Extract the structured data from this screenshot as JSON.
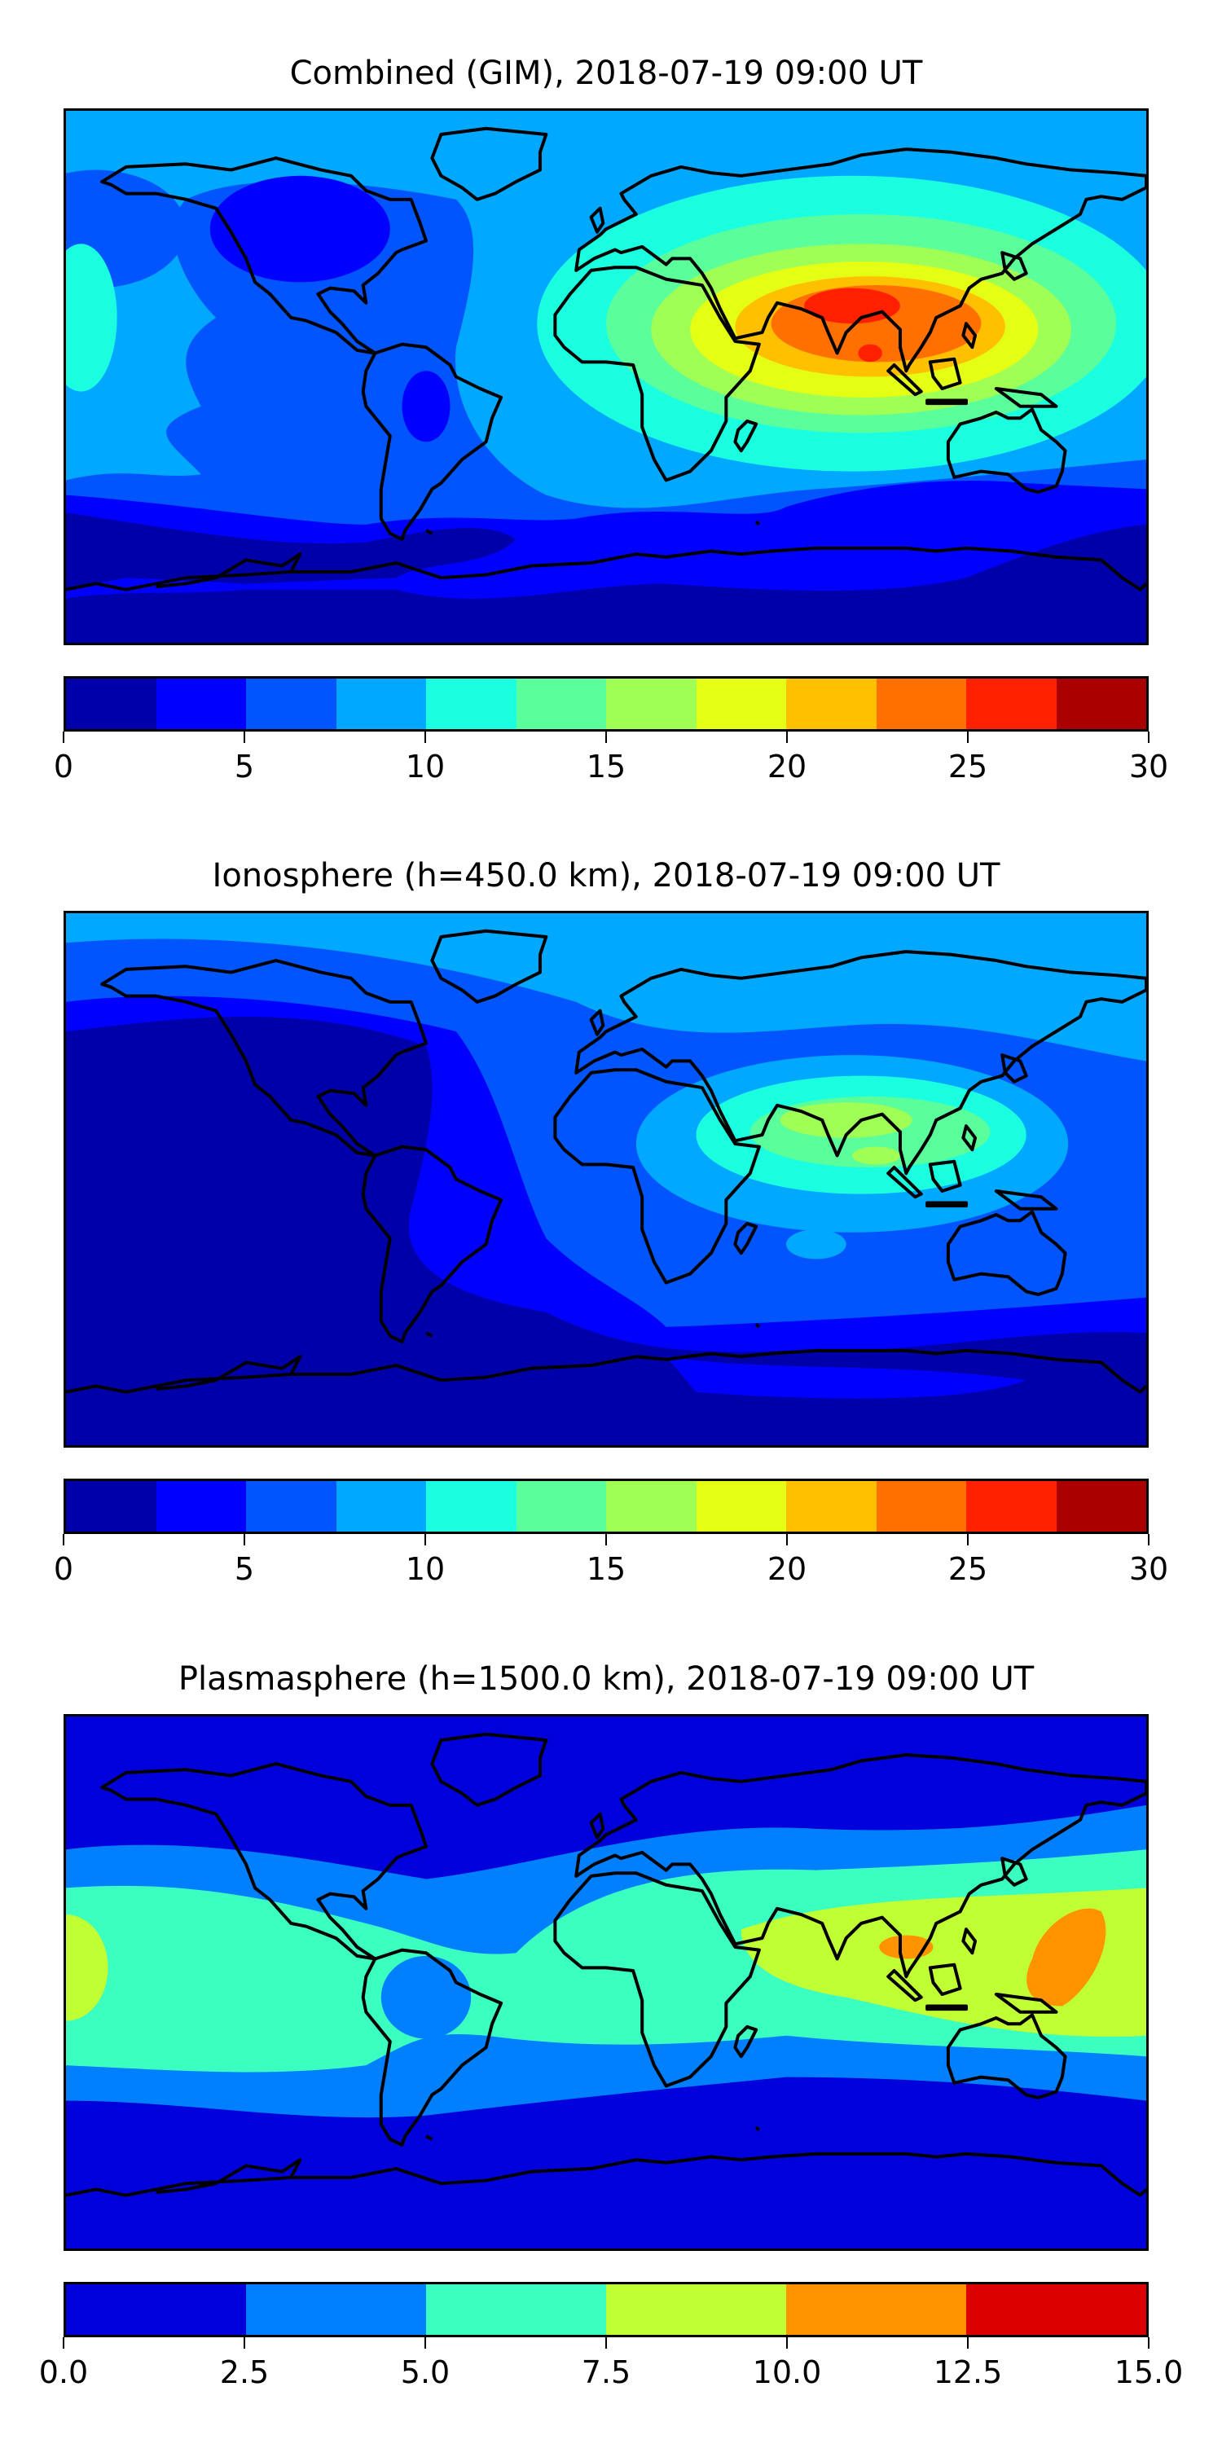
{
  "chart_data": [
    {
      "type": "heatmap",
      "title": "Combined (GIM), 2018-07-19 09:00 UT",
      "map_extent": {
        "lon": [
          -180,
          180
        ],
        "lat": [
          -90,
          90
        ]
      },
      "colorbar": {
        "range": [
          0,
          30
        ],
        "levels": [
          0,
          2.5,
          5,
          7.5,
          10,
          12.5,
          15,
          17.5,
          20,
          22.5,
          25,
          27.5,
          30
        ],
        "tick_labels": [
          "0",
          "5",
          "10",
          "15",
          "20",
          "25",
          "30"
        ],
        "tick_values": [
          0,
          5,
          10,
          15,
          20,
          25,
          30
        ],
        "colors": [
          "#0000aa",
          "#0000ff",
          "#0055ff",
          "#00a8ff",
          "#1affe0",
          "#5aff9b",
          "#a0ff55",
          "#e4ff14",
          "#ffc000",
          "#ff7000",
          "#ff2000",
          "#aa0000"
        ]
      },
      "features": {
        "max_region": "South Asia / Indian subcontinent, ~25-27.5",
        "min_region": "Southern high latitudes, 0-2.5"
      }
    },
    {
      "type": "heatmap",
      "title": "Ionosphere  (h=450.0 km), 2018-07-19 09:00 UT",
      "map_extent": {
        "lon": [
          -180,
          180
        ],
        "lat": [
          -90,
          90
        ]
      },
      "colorbar": {
        "range": [
          0,
          30
        ],
        "levels": [
          0,
          2.5,
          5,
          7.5,
          10,
          12.5,
          15,
          17.5,
          20,
          22.5,
          25,
          27.5,
          30
        ],
        "tick_labels": [
          "0",
          "5",
          "10",
          "15",
          "20",
          "25",
          "30"
        ],
        "tick_values": [
          0,
          5,
          10,
          15,
          20,
          25,
          30
        ],
        "colors": [
          "#0000aa",
          "#0000ff",
          "#0055ff",
          "#00a8ff",
          "#1affe0",
          "#5aff9b",
          "#a0ff55",
          "#e4ff14",
          "#ffc000",
          "#ff7000",
          "#ff2000",
          "#aa0000"
        ]
      },
      "features": {
        "max_region": "Arabian Sea / India, ~15-17.5",
        "min_region": "Pacific and southern latitudes, 0-2.5"
      }
    },
    {
      "type": "heatmap",
      "title": "Plasmasphere (h=1500.0 km), 2018-07-19 09:00 UT",
      "map_extent": {
        "lon": [
          -180,
          180
        ],
        "lat": [
          -90,
          90
        ]
      },
      "colorbar": {
        "range": [
          0,
          15
        ],
        "levels": [
          0,
          2.5,
          5,
          7.5,
          10,
          12.5,
          15
        ],
        "tick_labels": [
          "0.0",
          "2.5",
          "5.0",
          "7.5",
          "10.0",
          "12.5",
          "15.0"
        ],
        "tick_values": [
          0,
          2.5,
          5,
          7.5,
          10,
          12.5,
          15
        ],
        "colors": [
          "#0000dd",
          "#0080ff",
          "#3affc0",
          "#c0ff33",
          "#ff9400",
          "#dd0000"
        ]
      },
      "features": {
        "max_region": "Maritime Continent / New Guinea, ~10-12.5",
        "min_region": "High latitudes, 0-2.5"
      }
    }
  ]
}
